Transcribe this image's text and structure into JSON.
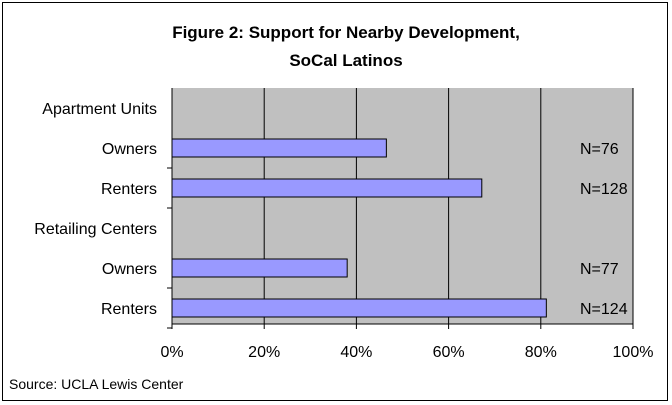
{
  "chart_data": {
    "type": "bar",
    "orientation": "horizontal",
    "title_line1": "Figure 2: Support for Nearby Development,",
    "title_line2": "SoCal Latinos",
    "source": "Source: UCLA Lewis Center",
    "groups": [
      {
        "label": "Apartment Units",
        "rows": [
          {
            "label": "Owners",
            "value": 46.5,
            "n_label": "N=76"
          },
          {
            "label": "Renters",
            "value": 67.2,
            "n_label": "N=128"
          }
        ]
      },
      {
        "label": "Retailing Centers",
        "rows": [
          {
            "label": "Owners",
            "value": 38.0,
            "n_label": "N=77"
          },
          {
            "label": "Renters",
            "value": 81.2,
            "n_label": "N=124"
          }
        ]
      }
    ],
    "xlim": [
      0,
      100
    ],
    "xticks": [
      "0%",
      "20%",
      "40%",
      "60%",
      "80%",
      "100%"
    ],
    "grid": true,
    "colors": {
      "plot_background": "#c0c0c0",
      "bar_fill": "#9999ff",
      "bar_stroke": "#000000",
      "gridline": "#000000"
    }
  }
}
